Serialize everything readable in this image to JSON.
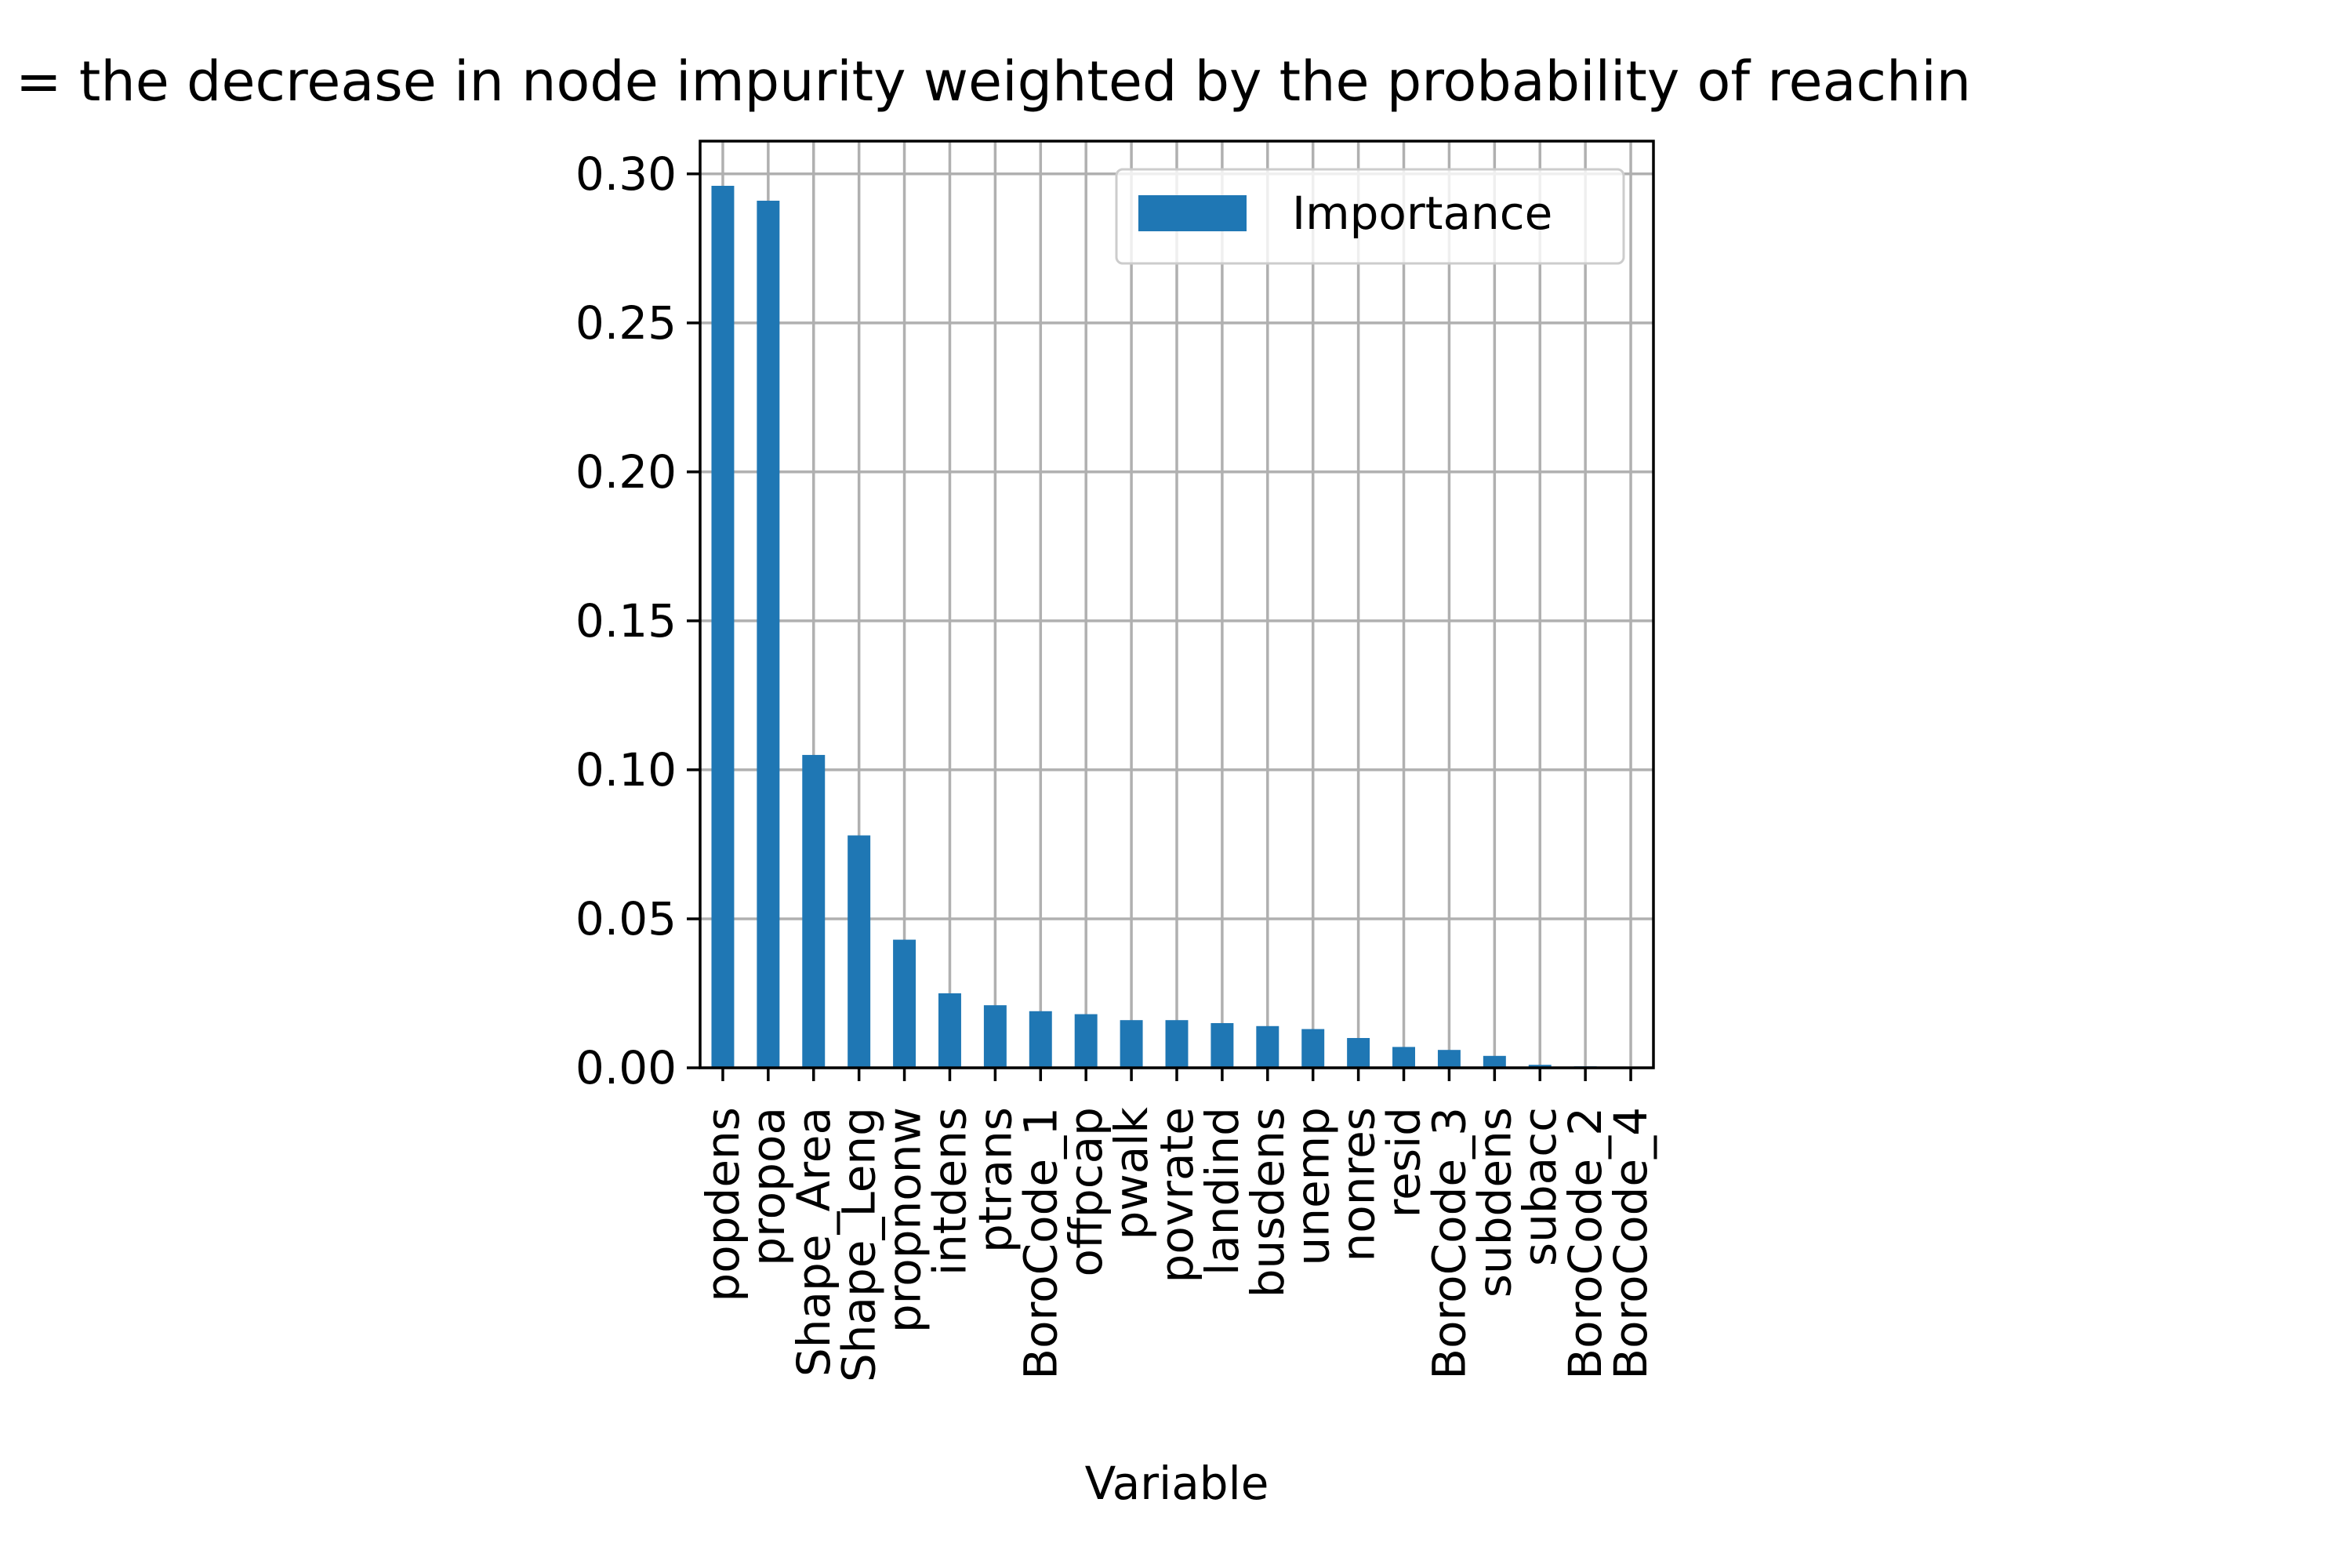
{
  "chart_data": {
    "type": "bar",
    "title": "= the decrease in node impurity weighted by the probability of reachin",
    "xlabel": "Variable",
    "ylabel": "",
    "ylim": [
      0,
      0.311
    ],
    "yticks": [
      "0.00",
      "0.05",
      "0.10",
      "0.15",
      "0.20",
      "0.25",
      "0.30"
    ],
    "grid": true,
    "legend_position": "top-right",
    "categories": [
      "popdens",
      "propoa",
      "Shape_Area",
      "Shape_Leng",
      "propnonw",
      "intdens",
      "ptrans",
      "BoroCode_1",
      "offpcap",
      "pwalk",
      "povrate",
      "landind",
      "busdens",
      "unemp",
      "nonres",
      "resid",
      "BoroCode_3",
      "subdens",
      "subacc",
      "BoroCode_2",
      "BoroCode_4"
    ],
    "series": [
      {
        "name": "Importance",
        "color": "#1f77b4",
        "values": [
          0.296,
          0.291,
          0.105,
          0.078,
          0.043,
          0.025,
          0.021,
          0.019,
          0.018,
          0.016,
          0.016,
          0.015,
          0.014,
          0.013,
          0.01,
          0.007,
          0.006,
          0.004,
          0.001,
          0.0005,
          0.0003
        ]
      }
    ]
  }
}
